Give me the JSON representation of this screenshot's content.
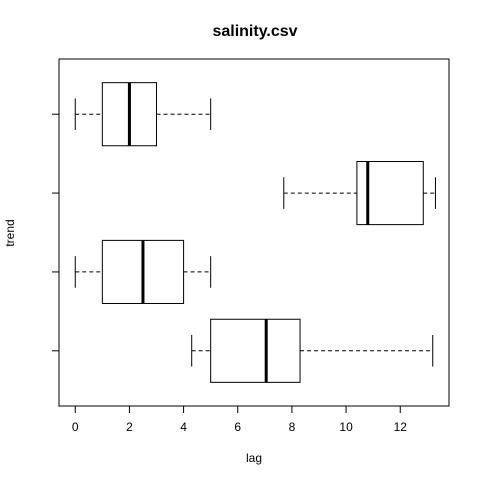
{
  "chart_data": {
    "type": "boxplot",
    "orientation": "horizontal",
    "title": "salinity.csv",
    "xlabel": "lag",
    "ylabel": "trend",
    "xlim": [
      -0.6,
      13.8
    ],
    "x_ticks": [
      0,
      2,
      4,
      6,
      8,
      10,
      12
    ],
    "grid": false,
    "boxes": [
      {
        "whisker_low": 4.3,
        "q1": 5.0,
        "median": 7.05,
        "q3": 8.3,
        "whisker_high": 13.2
      },
      {
        "whisker_low": 0.0,
        "q1": 1.0,
        "median": 2.5,
        "q3": 4.0,
        "whisker_high": 5.0
      },
      {
        "whisker_low": 7.7,
        "q1": 10.4,
        "median": 10.8,
        "q3": 12.85,
        "whisker_high": 13.3
      },
      {
        "whisker_low": 0.0,
        "q1": 1.0,
        "median": 2.0,
        "q3": 3.0,
        "whisker_high": 5.0
      }
    ]
  }
}
